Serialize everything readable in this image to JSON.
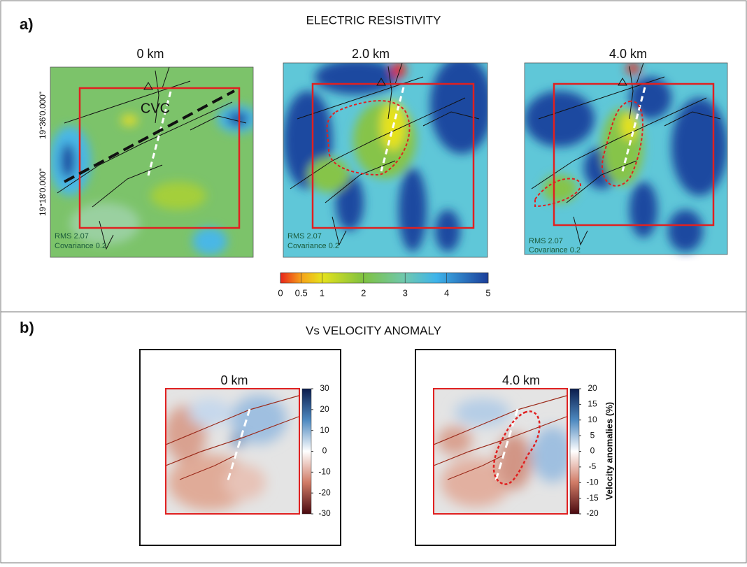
{
  "panel_a": {
    "label": "a)",
    "title": "ELECTRIC RESISTIVITY",
    "maps": [
      {
        "depth": "0 km",
        "rms": "RMS 2.07",
        "covariance": "Covariance 0.2",
        "annotation": "CVC",
        "lat_labels": [
          "19°36'0.000\"",
          "19°18'0.000\""
        ]
      },
      {
        "depth": "2.0 km",
        "rms": "RMS 2.07",
        "covariance": "Covariance 0.2"
      },
      {
        "depth": "4.0 km",
        "rms": "RMS 2.07",
        "covariance": "Covariance 0.2"
      }
    ],
    "colorbar_ticks": [
      0,
      0.5,
      1,
      2,
      3,
      4,
      5
    ]
  },
  "panel_b": {
    "label": "b)",
    "title": "Vs VELOCITY ANOMALY",
    "maps": [
      {
        "depth": "0 km",
        "colorbar_ticks": [
          30,
          20,
          10,
          0,
          -10,
          -20,
          -30
        ]
      },
      {
        "depth": "4.0 km",
        "colorbar_ticks": [
          20,
          15,
          10,
          5,
          0,
          -5,
          -10,
          -15,
          -20
        ],
        "colorbar_label": "Velocity anomalies (%)"
      }
    ]
  }
}
